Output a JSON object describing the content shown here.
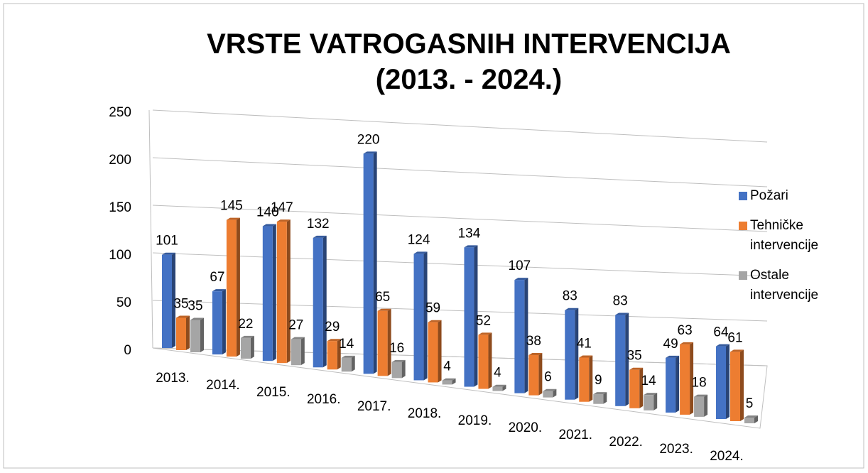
{
  "chart_data": {
    "type": "bar3d",
    "title": [
      "VRSTE VATROGASNIH INTERVENCIJA",
      "(2013. - 2024.)"
    ],
    "categories": [
      "2013.",
      "2014.",
      "2015.",
      "2016.",
      "2017.",
      "2018.",
      "2019.",
      "2020.",
      "2021.",
      "2022.",
      "2023.",
      "2024."
    ],
    "series": [
      {
        "name": "Požari",
        "color": "#4472c4",
        "values": [
          101,
          67,
          140,
          132,
          220,
          124,
          134,
          107,
          83,
          83,
          49,
          64
        ]
      },
      {
        "name": "Tehničke intervencije",
        "color": "#ed7d31",
        "values": [
          35,
          145,
          147,
          29,
          65,
          59,
          52,
          38,
          41,
          35,
          63,
          61
        ]
      },
      {
        "name": "Ostale intervencije",
        "color": "#a5a5a5",
        "values": [
          35,
          22,
          27,
          14,
          16,
          4,
          4,
          6,
          9,
          14,
          18,
          5
        ]
      }
    ],
    "ylim": [
      0,
      250
    ],
    "yticks": [
      0,
      50,
      100,
      150,
      200,
      250
    ],
    "grid": true,
    "legend": "right"
  }
}
